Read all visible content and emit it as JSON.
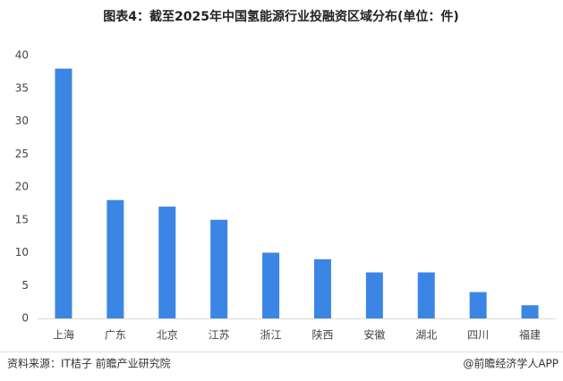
{
  "chart_data": {
    "type": "bar",
    "title": "图表4：截至2025年中国氢能源行业投融资区域分布(单位：件)",
    "categories": [
      "上海",
      "广东",
      "北京",
      "江苏",
      "浙江",
      "陕西",
      "安徽",
      "湖北",
      "四川",
      "福建"
    ],
    "values": [
      38,
      18,
      17,
      15,
      10,
      9,
      7,
      7,
      4,
      2
    ],
    "color": "#3b86e4",
    "ylim": [
      0,
      40
    ],
    "yticks": [
      0,
      5,
      10,
      15,
      20,
      25,
      30,
      35,
      40
    ],
    "grid": false
  },
  "footer": {
    "source": "资料来源：IT桔子 前瞻产业研究院",
    "brand": "@前瞻经济学人APP"
  }
}
